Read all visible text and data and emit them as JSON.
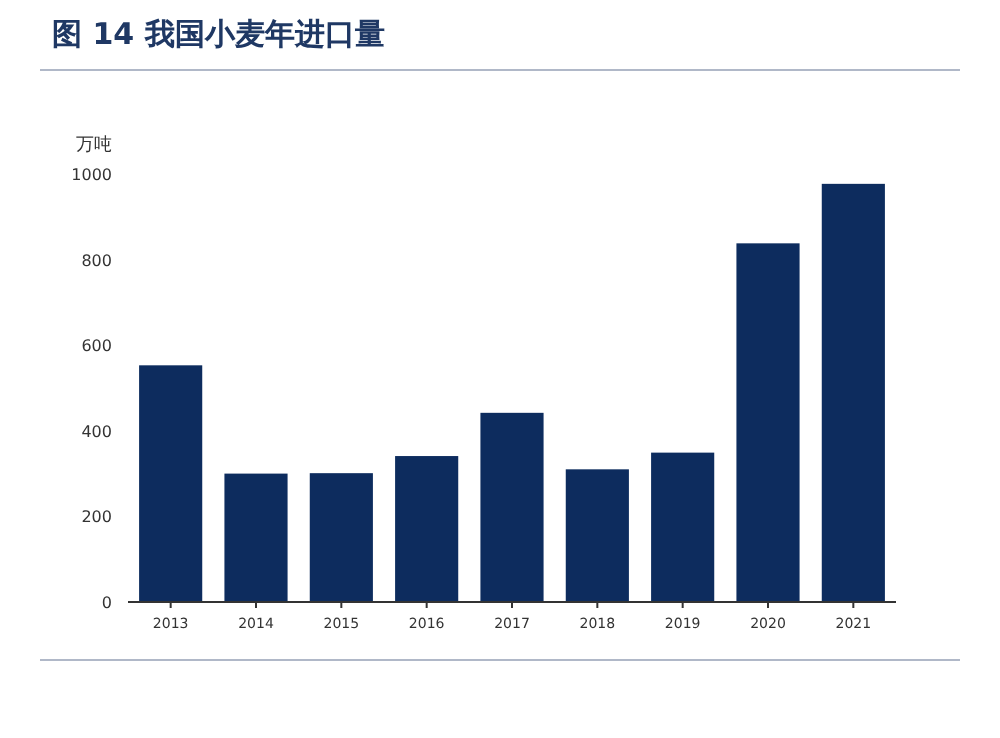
{
  "chart_data": {
    "type": "bar",
    "title": "图 14 我国小麦年进口量",
    "ylabel": "万吨",
    "categories": [
      "2013",
      "2014",
      "2015",
      "2016",
      "2017",
      "2018",
      "2019",
      "2020",
      "2021"
    ],
    "values": [
      553,
      300,
      301,
      341,
      442,
      310,
      349,
      838,
      977
    ],
    "color": "#0d2c5e",
    "ylim": [
      0,
      1000
    ],
    "yticks": [
      0,
      200,
      400,
      600,
      800,
      1000
    ]
  }
}
